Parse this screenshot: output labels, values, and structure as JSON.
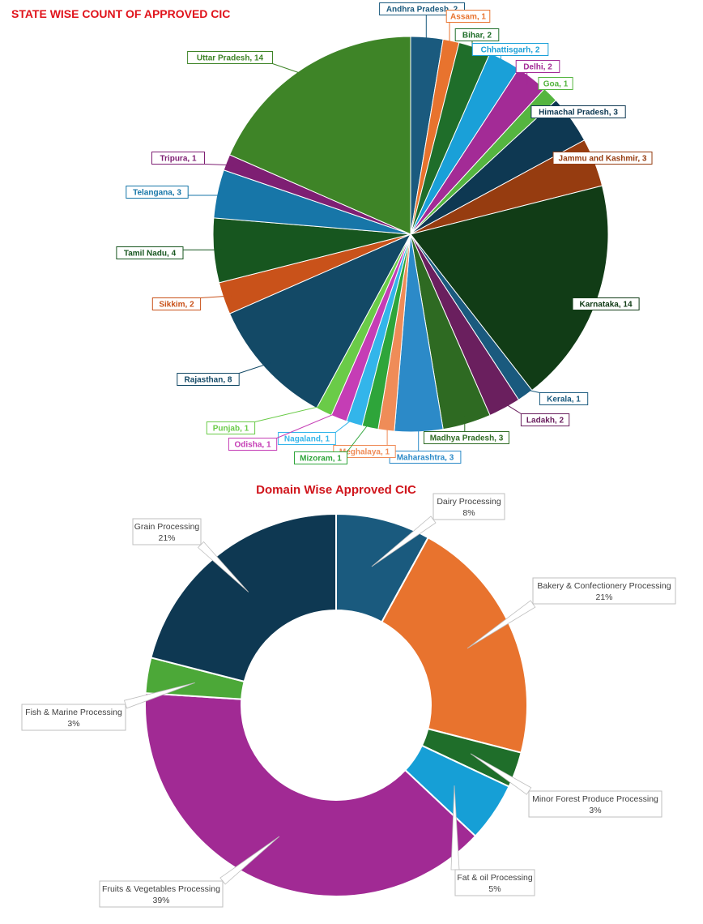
{
  "chart_data": [
    {
      "type": "pie",
      "title": "STATE WISE COUNT OF APPROVED CIC",
      "data_labels": "category, value",
      "slices": [
        {
          "label": "Andhra Pradesh",
          "value": 2,
          "color": "#1a5a7e"
        },
        {
          "label": "Assam",
          "value": 1,
          "color": "#e8732e"
        },
        {
          "label": "Bihar",
          "value": 2,
          "color": "#1f6e2a"
        },
        {
          "label": "Chhattisgarh",
          "value": 2,
          "color": "#1aa0d8"
        },
        {
          "label": "Delhi",
          "value": 2,
          "color": "#a32b96"
        },
        {
          "label": "Goa",
          "value": 1,
          "color": "#55b540"
        },
        {
          "label": "Himachal Pradesh",
          "value": 3,
          "color": "#0e3852"
        },
        {
          "label": "Jammu and Kashmir",
          "value": 3,
          "color": "#963c10"
        },
        {
          "label": "Karnataka",
          "value": 14,
          "color": "#113c16"
        },
        {
          "label": "Kerala",
          "value": 1,
          "color": "#1a5a7e"
        },
        {
          "label": "Ladakh",
          "value": 2,
          "color": "#6a1f5e"
        },
        {
          "label": "Madhya Pradesh",
          "value": 3,
          "color": "#2e6a22"
        },
        {
          "label": "Maharashtra",
          "value": 3,
          "color": "#2c8ac8"
        },
        {
          "label": "Meghalaya",
          "value": 1,
          "color": "#ef8c58"
        },
        {
          "label": "Mizoram",
          "value": 1,
          "color": "#2ea53a"
        },
        {
          "label": "Nagaland",
          "value": 1,
          "color": "#33b5ea"
        },
        {
          "label": "Odisha",
          "value": 1,
          "color": "#c53db5"
        },
        {
          "label": "Punjab",
          "value": 1,
          "color": "#6acb48"
        },
        {
          "label": "Rajasthan",
          "value": 8,
          "color": "#134966"
        },
        {
          "label": "Sikkim",
          "value": 2,
          "color": "#c9521a"
        },
        {
          "label": "Tamil Nadu",
          "value": 4,
          "color": "#17561f"
        },
        {
          "label": "Telangana",
          "value": 3,
          "color": "#1776a8"
        },
        {
          "label": "Tripura",
          "value": 1,
          "color": "#7e1f73"
        },
        {
          "label": "Uttar Pradesh",
          "value": 14,
          "color": "#3e8427"
        }
      ]
    },
    {
      "type": "pie",
      "variant": "doughnut",
      "title": "Domain Wise Approved CIC",
      "data_labels": "category, percent",
      "slices": [
        {
          "label": "Dairy Processing",
          "value": 8,
          "display": "8%",
          "color": "#1a5a7e"
        },
        {
          "label": "Bakery & Confectionery Processing",
          "value": 21,
          "display": "21%",
          "color": "#e8732e"
        },
        {
          "label": "Minor Forest Produce Processing",
          "value": 3,
          "display": "3%",
          "color": "#1f6e2a"
        },
        {
          "label": "Fat & oil Processing",
          "value": 5,
          "display": "5%",
          "color": "#169fd6"
        },
        {
          "label": "Fruits & Vegetables Processing",
          "value": 39,
          "display": "39%",
          "color": "#a12a94"
        },
        {
          "label": "Fish & Marine Processing",
          "value": 3,
          "display": "3%",
          "color": "#4ca838"
        },
        {
          "label": "Grain Processing",
          "value": 21,
          "display": "21%",
          "color": "#0e3852"
        }
      ]
    }
  ]
}
